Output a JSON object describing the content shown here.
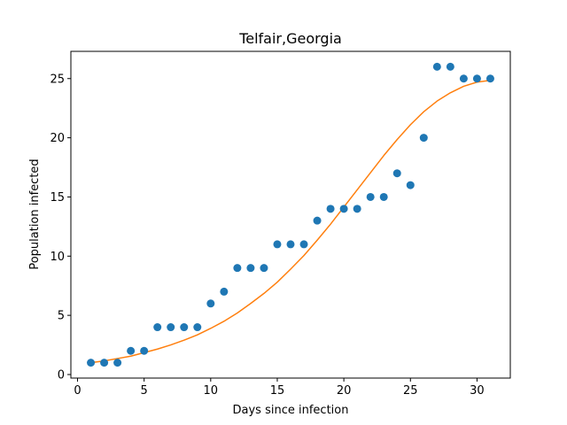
{
  "chart_data": {
    "type": "scatter",
    "title": "Telfair,Georgia",
    "xlabel": "Days since infection",
    "ylabel": "Population infected",
    "xlim": [
      -0.5,
      32.5
    ],
    "ylim": [
      -0.3,
      27.3
    ],
    "xticks": [
      0,
      5,
      10,
      15,
      20,
      25,
      30
    ],
    "yticks": [
      0,
      5,
      10,
      15,
      20,
      25
    ],
    "grid": false,
    "series": [
      {
        "kind": "scatter",
        "color": "#1f77b4",
        "x": [
          1,
          2,
          3,
          4,
          5,
          6,
          7,
          8,
          9,
          10,
          11,
          12,
          13,
          14,
          15,
          16,
          17,
          18,
          19,
          20,
          21,
          22,
          23,
          24,
          25,
          26,
          27,
          28,
          29,
          30,
          31
        ],
        "y": [
          1,
          1,
          1,
          2,
          2,
          4,
          4,
          4,
          4,
          6,
          7,
          9,
          9,
          9,
          11,
          11,
          11,
          13,
          14,
          14,
          14,
          15,
          15,
          17,
          16,
          20,
          26,
          26,
          25,
          25,
          25
        ]
      },
      {
        "kind": "line",
        "color": "#ff7f0e",
        "x": [
          1,
          2,
          3,
          4,
          5,
          6,
          7,
          8,
          9,
          10,
          11,
          12,
          13,
          14,
          15,
          16,
          17,
          18,
          19,
          20,
          21,
          22,
          23,
          24,
          25,
          26,
          27,
          28,
          29,
          30,
          31
        ],
        "y": [
          1.0,
          1.15,
          1.35,
          1.55,
          1.85,
          2.15,
          2.5,
          2.9,
          3.35,
          3.9,
          4.5,
          5.2,
          6.0,
          6.85,
          7.8,
          8.9,
          10.05,
          11.35,
          12.7,
          14.15,
          15.6,
          17.05,
          18.5,
          19.85,
          21.1,
          22.2,
          23.1,
          23.8,
          24.35,
          24.7,
          24.85
        ]
      }
    ]
  }
}
